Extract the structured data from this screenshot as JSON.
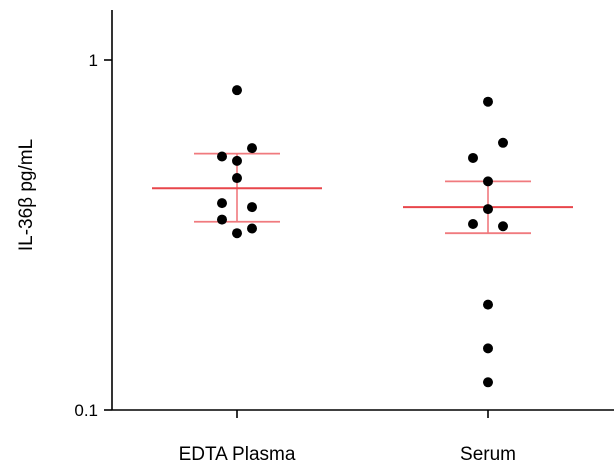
{
  "chart_data": {
    "type": "scatter",
    "title": "",
    "xlabel": "",
    "ylabel": "IL-36β pg/mL",
    "yscale": "log",
    "ylim": [
      0.1,
      1.4
    ],
    "yticks": [
      {
        "value": 1,
        "label": "1"
      },
      {
        "value": 0.1,
        "label": "0.1"
      }
    ],
    "categories": [
      "EDTA Plasma",
      "Serum"
    ],
    "grid": false,
    "legend": "none",
    "colors": {
      "points": "#000000",
      "mean_line": "#e8464b",
      "error_bar": "#f07a7e",
      "axis": "#000000"
    },
    "groups": [
      {
        "category": "EDTA Plasma",
        "mean": 0.43,
        "error_upper": 0.54,
        "error_lower": 0.345,
        "points": [
          {
            "dx": 0,
            "y": 0.82
          },
          {
            "dx": 1,
            "y": 0.56
          },
          {
            "dx": -1,
            "y": 0.53
          },
          {
            "dx": 0,
            "y": 0.515
          },
          {
            "dx": 0,
            "y": 0.46
          },
          {
            "dx": -1,
            "y": 0.39
          },
          {
            "dx": 1,
            "y": 0.38
          },
          {
            "dx": -1,
            "y": 0.35
          },
          {
            "dx": 1,
            "y": 0.33
          },
          {
            "dx": 0,
            "y": 0.32
          }
        ]
      },
      {
        "category": "Serum",
        "mean": 0.38,
        "error_upper": 0.45,
        "error_lower": 0.32,
        "points": [
          {
            "dx": 0,
            "y": 0.76
          },
          {
            "dx": 1,
            "y": 0.58
          },
          {
            "dx": -1,
            "y": 0.525
          },
          {
            "dx": 0,
            "y": 0.45
          },
          {
            "dx": 0,
            "y": 0.375
          },
          {
            "dx": -1,
            "y": 0.34
          },
          {
            "dx": 1,
            "y": 0.335
          },
          {
            "dx": 0,
            "y": 0.2
          },
          {
            "dx": 0,
            "y": 0.15
          },
          {
            "dx": 0,
            "y": 0.12
          }
        ]
      }
    ]
  }
}
